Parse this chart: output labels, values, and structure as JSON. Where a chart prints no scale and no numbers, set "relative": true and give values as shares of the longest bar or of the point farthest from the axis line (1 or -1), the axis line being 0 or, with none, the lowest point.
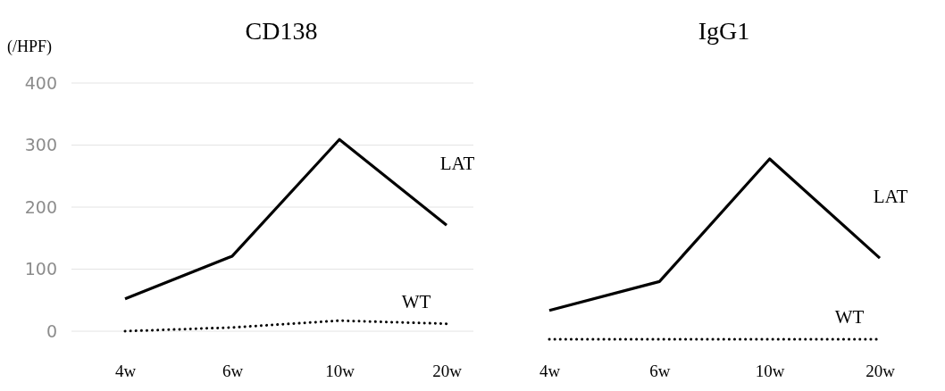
{
  "chart_data": [
    {
      "type": "line",
      "title": "CD138",
      "ylabel": "(/HPF)",
      "categories": [
        "4w",
        "6w",
        "10w",
        "20w"
      ],
      "ylim": [
        0,
        400
      ],
      "yticks": [
        0,
        100,
        200,
        300,
        400
      ],
      "grid": "y",
      "legend": false,
      "marker": "none",
      "series": [
        {
          "name": "LAT",
          "color": "#000000",
          "line_style": "solid",
          "values": [
            52,
            121,
            309,
            171
          ]
        },
        {
          "name": "WT",
          "color": "#000000",
          "line_style": "dotted",
          "values": [
            0,
            6,
            17,
            12
          ]
        }
      ]
    },
    {
      "type": "line",
      "title": "IgG1",
      "categories": [
        "4w",
        "6w",
        "10w",
        "20w"
      ],
      "relative": true,
      "legend": false,
      "marker": "none",
      "series": [
        {
          "name": "LAT",
          "color": "#000000",
          "line_style": "solid",
          "values": [
            0.16,
            0.32,
            1,
            0.45
          ]
        },
        {
          "name": "WT",
          "color": "#000000",
          "line_style": "dotted",
          "values": [
            0,
            0,
            0,
            0
          ]
        }
      ]
    }
  ]
}
